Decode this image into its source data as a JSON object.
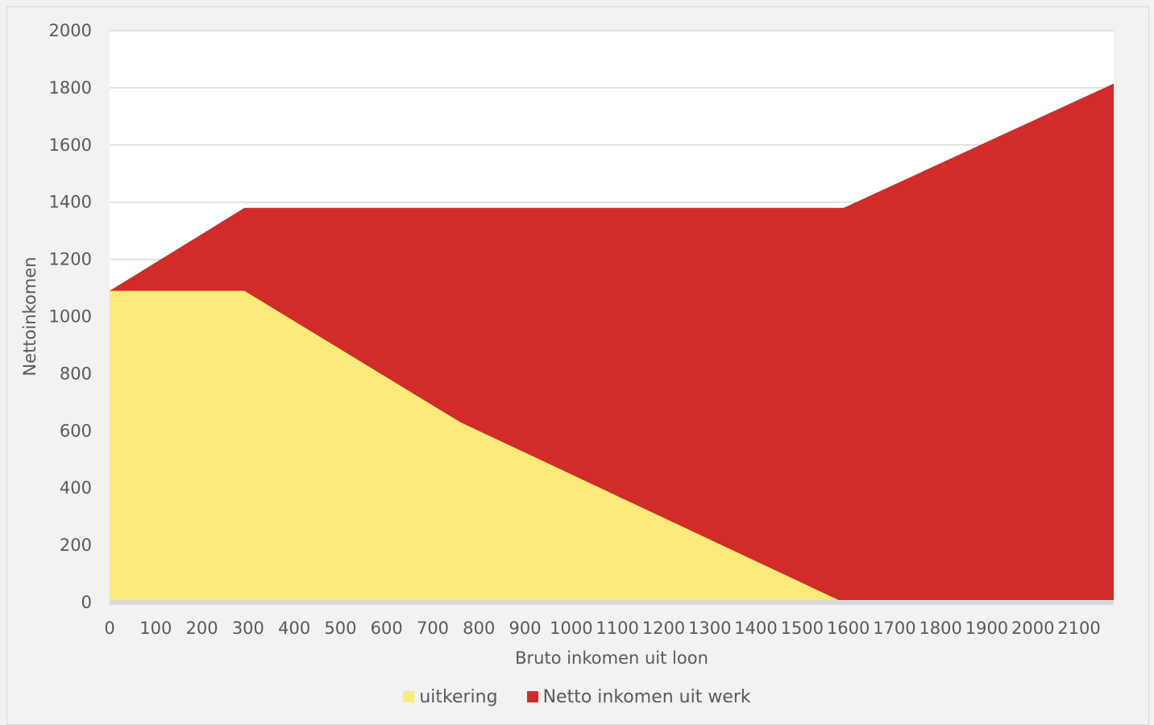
{
  "chart_data": {
    "type": "area",
    "stacked": true,
    "xlabel": "Bruto inkomen uit loon",
    "ylabel": "Nettoinkomen",
    "ylim": [
      0,
      2000
    ],
    "xlim": [
      0,
      2175
    ],
    "y_ticks": [
      0,
      200,
      400,
      600,
      800,
      1000,
      1200,
      1400,
      1600,
      1800,
      2000
    ],
    "x_ticks": [
      0,
      100,
      200,
      300,
      400,
      500,
      600,
      700,
      800,
      900,
      1000,
      1100,
      1200,
      1300,
      1400,
      1500,
      1600,
      1700,
      1800,
      1900,
      2000,
      2100
    ],
    "grid": true,
    "legend_position": "bottom",
    "series": [
      {
        "name": "uitkering",
        "color": "#fdea7a",
        "points": [
          [
            0,
            1090
          ],
          [
            292,
            1090
          ],
          [
            760,
            630
          ],
          [
            1590,
            0
          ],
          [
            2175,
            0
          ]
        ]
      },
      {
        "name": "Netto inkomen uit werk",
        "color": "#d12c2a",
        "totals": [
          [
            0,
            1090
          ],
          [
            292,
            1380
          ],
          [
            760,
            1380
          ],
          [
            1590,
            1380
          ],
          [
            2175,
            1815
          ]
        ]
      }
    ]
  }
}
